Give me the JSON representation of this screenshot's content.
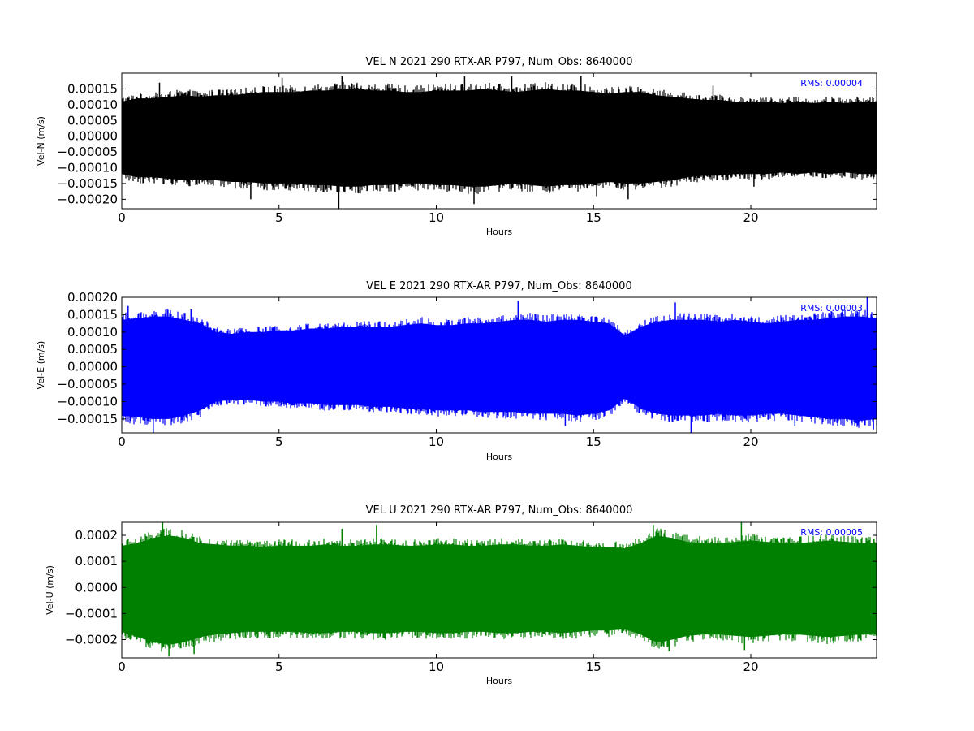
{
  "chart_data": [
    {
      "type": "line",
      "title": "VEL N 2021 290 RTX-AR  P797, Num_Obs: 8640000",
      "xlabel": "Hours",
      "ylabel": "Vel-N (m/s)",
      "xlim": [
        0,
        24
      ],
      "ylim": [
        -0.00023,
        0.0002
      ],
      "xticks": [
        0,
        5,
        10,
        15,
        20
      ],
      "xtick_labels": [
        "0",
        "5",
        "10",
        "15",
        "20"
      ],
      "yticks": [
        -0.0002,
        -0.00015,
        -0.0001,
        -5e-05,
        0,
        5e-05,
        0.0001,
        0.00015
      ],
      "ytick_labels": [
        "−0.00020",
        "−0.00015",
        "−0.00010",
        "−0.00005",
        "0.00000",
        "0.00005",
        "0.00010",
        "0.00015"
      ],
      "color": "#000000",
      "rms_label": "RMS:  0.00004",
      "rms_color": "#0000ff",
      "grid": false,
      "series": [
        {
          "x": [
            0,
            0.5,
            1,
            1.5,
            2,
            2.5,
            3,
            3.5,
            4,
            4.5,
            5,
            5.5,
            6,
            6.5,
            7,
            7.5,
            8,
            8.5,
            9,
            9.5,
            10,
            10.5,
            11,
            11.5,
            12,
            12.5,
            13,
            13.5,
            14,
            14.5,
            15,
            15.5,
            16,
            16.5,
            17,
            17.5,
            18,
            18.5,
            19,
            19.5,
            20,
            20.5,
            21,
            21.5,
            22,
            22.5,
            23,
            23.5,
            24
          ],
          "upper": [
            0.00011,
            0.00012,
            0.00012,
            0.000125,
            0.00013,
            0.000125,
            0.00013,
            0.00013,
            0.000135,
            0.00014,
            0.00014,
            0.00014,
            0.000145,
            0.000145,
            0.00015,
            0.00015,
            0.000145,
            0.000145,
            0.00014,
            0.00014,
            0.000145,
            0.000145,
            0.000145,
            0.00015,
            0.000145,
            0.00014,
            0.000145,
            0.00015,
            0.000145,
            0.000145,
            0.00014,
            0.000135,
            0.00014,
            0.00014,
            0.00013,
            0.000125,
            0.00012,
            0.000115,
            0.000115,
            0.00011,
            0.00011,
            0.00011,
            0.000105,
            0.00011,
            0.000105,
            0.00011,
            0.000105,
            0.00011,
            0.00011
          ],
          "lower": [
            -0.00012,
            -0.00013,
            -0.00013,
            -0.000135,
            -0.00014,
            -0.00014,
            -0.00014,
            -0.000145,
            -0.000145,
            -0.00015,
            -0.00015,
            -0.00015,
            -0.000155,
            -0.000155,
            -0.00016,
            -0.00016,
            -0.000155,
            -0.000155,
            -0.00015,
            -0.00015,
            -0.000155,
            -0.000155,
            -0.00016,
            -0.00016,
            -0.000155,
            -0.00015,
            -0.000155,
            -0.00016,
            -0.000155,
            -0.000155,
            -0.00015,
            -0.000145,
            -0.00015,
            -0.00015,
            -0.000145,
            -0.00014,
            -0.00013,
            -0.000125,
            -0.000125,
            -0.00012,
            -0.00012,
            -0.00012,
            -0.000115,
            -0.00012,
            -0.000115,
            -0.00012,
            -0.000115,
            -0.00012,
            -0.00012
          ],
          "spikes": [
            [
              1.2,
              0.00017
            ],
            [
              4.1,
              -0.0002
            ],
            [
              5.1,
              0.000185
            ],
            [
              6.9,
              -0.00023
            ],
            [
              7.0,
              0.00019
            ],
            [
              10.9,
              0.00019
            ],
            [
              11.2,
              -0.000215
            ],
            [
              12.4,
              0.00019
            ],
            [
              14.6,
              0.00019
            ],
            [
              15.1,
              -0.00019
            ],
            [
              16.1,
              -0.0002
            ],
            [
              18.8,
              0.00016
            ],
            [
              20.1,
              -0.00016
            ]
          ]
        }
      ]
    },
    {
      "type": "line",
      "title": "VEL E 2021 290 RTX-AR  P797, Num_Obs: 8640000",
      "xlabel": "Hours",
      "ylabel": "Vel-E (m/s)",
      "xlim": [
        0,
        24
      ],
      "ylim": [
        -0.00019,
        0.0002
      ],
      "xticks": [
        0,
        5,
        10,
        15,
        20
      ],
      "xtick_labels": [
        "0",
        "5",
        "10",
        "15",
        "20"
      ],
      "yticks": [
        -0.00015,
        -0.0001,
        -5e-05,
        0,
        5e-05,
        0.0001,
        0.00015,
        0.0002
      ],
      "ytick_labels": [
        "−0.00015",
        "−0.00010",
        "−0.00005",
        "0.00000",
        "0.00005",
        "0.00010",
        "0.00015",
        "0.00020"
      ],
      "color": "#0000ff",
      "rms_label": "RMS:  0.00003",
      "rms_color": "#0000ff",
      "grid": false,
      "series": [
        {
          "x": [
            0,
            0.5,
            1,
            1.5,
            2,
            2.5,
            3,
            3.5,
            4,
            4.5,
            5,
            5.5,
            6,
            6.5,
            7,
            7.5,
            8,
            8.5,
            9,
            9.5,
            10,
            10.5,
            11,
            11.5,
            12,
            12.5,
            13,
            13.5,
            14,
            14.5,
            15,
            15.5,
            16,
            16.5,
            17,
            17.5,
            18,
            18.5,
            19,
            19.5,
            20,
            20.5,
            21,
            21.5,
            22,
            22.5,
            23,
            23.5,
            24
          ],
          "upper": [
            0.000135,
            0.00014,
            0.000145,
            0.000145,
            0.000135,
            0.000125,
            0.0001,
            9.5e-05,
            0.0001,
            0.0001,
            0.000105,
            0.000105,
            0.00011,
            0.00011,
            0.000115,
            0.000115,
            0.000115,
            0.000115,
            0.00012,
            0.000125,
            0.00012,
            0.00012,
            0.000125,
            0.000125,
            0.00013,
            0.000135,
            0.000135,
            0.00013,
            0.000135,
            0.000135,
            0.00013,
            0.000125,
            9e-05,
            0.000115,
            0.00013,
            0.000135,
            0.000135,
            0.000135,
            0.00013,
            0.000135,
            0.00013,
            0.000125,
            0.00013,
            0.000135,
            0.000135,
            0.00014,
            0.000145,
            0.000145,
            0.00014
          ],
          "lower": [
            -0.00014,
            -0.000145,
            -0.00015,
            -0.00015,
            -0.00014,
            -0.000125,
            -0.0001,
            -9.5e-05,
            -9.5e-05,
            -0.0001,
            -0.0001,
            -0.000105,
            -0.000105,
            -0.00011,
            -0.00011,
            -0.00011,
            -0.000115,
            -0.000115,
            -0.00012,
            -0.00012,
            -0.000125,
            -0.000125,
            -0.000125,
            -0.00013,
            -0.00013,
            -0.00013,
            -0.000135,
            -0.000135,
            -0.000135,
            -0.00014,
            -0.000135,
            -0.000125,
            -9e-05,
            -0.00012,
            -0.000135,
            -0.00014,
            -0.00014,
            -0.00014,
            -0.000135,
            -0.00014,
            -0.00014,
            -0.000135,
            -0.000135,
            -0.00014,
            -0.000145,
            -0.00015,
            -0.00015,
            -0.000155,
            -0.00015
          ],
          "spikes": [
            [
              0.2,
              0.000175
            ],
            [
              1.0,
              -0.00019
            ],
            [
              2.2,
              0.000165
            ],
            [
              12.6,
              0.00019
            ],
            [
              14.1,
              -0.00017
            ],
            [
              17.6,
              0.000185
            ],
            [
              18.1,
              -0.00019
            ],
            [
              21.4,
              -0.00017
            ],
            [
              23.7,
              0.0002
            ],
            [
              23.9,
              -0.00018
            ]
          ]
        }
      ]
    },
    {
      "type": "line",
      "title": "VEL U 2021 290 RTX-AR  P797, Num_Obs: 8640000",
      "xlabel": "Hours",
      "ylabel": "Vel-U (m/s)",
      "xlim": [
        0,
        24
      ],
      "ylim": [
        -0.00027,
        0.00025
      ],
      "xticks": [
        0,
        5,
        10,
        15,
        20
      ],
      "xtick_labels": [
        "0",
        "5",
        "10",
        "15",
        "20"
      ],
      "yticks": [
        -0.0002,
        -0.0001,
        0,
        0.0001,
        0.0002
      ],
      "ytick_labels": [
        "−0.0002",
        "−0.0001",
        "0.0000",
        "0.0001",
        "0.0002"
      ],
      "color": "#008000",
      "rms_label": "RMS:  0.00005",
      "rms_color": "#0000ff",
      "grid": false,
      "series": [
        {
          "x": [
            0,
            0.5,
            1,
            1.5,
            2,
            2.5,
            3,
            3.5,
            4,
            4.5,
            5,
            5.5,
            6,
            6.5,
            7,
            7.5,
            8,
            8.5,
            9,
            9.5,
            10,
            10.5,
            11,
            11.5,
            12,
            12.5,
            13,
            13.5,
            14,
            14.5,
            15,
            15.5,
            16,
            16.5,
            17,
            17.5,
            18,
            18.5,
            19,
            19.5,
            20,
            20.5,
            21,
            21.5,
            22,
            22.5,
            23,
            23.5,
            24
          ],
          "upper": [
            0.00016,
            0.00017,
            0.00019,
            0.0002,
            0.00019,
            0.00017,
            0.000165,
            0.00016,
            0.00016,
            0.000155,
            0.00016,
            0.00016,
            0.00016,
            0.000165,
            0.00016,
            0.00016,
            0.000165,
            0.000165,
            0.00016,
            0.00016,
            0.000165,
            0.000165,
            0.00016,
            0.00016,
            0.000165,
            0.000165,
            0.00016,
            0.00016,
            0.000165,
            0.00016,
            0.000155,
            0.000155,
            0.00015,
            0.00017,
            0.0002,
            0.00019,
            0.000175,
            0.00017,
            0.00017,
            0.000175,
            0.00018,
            0.000175,
            0.00017,
            0.00017,
            0.000175,
            0.00018,
            0.000175,
            0.00017,
            0.00017
          ],
          "lower": [
            -0.00017,
            -0.00019,
            -0.00021,
            -0.00022,
            -0.00021,
            -0.00019,
            -0.00018,
            -0.000175,
            -0.00017,
            -0.00017,
            -0.00017,
            -0.00017,
            -0.000175,
            -0.000175,
            -0.00017,
            -0.00017,
            -0.000175,
            -0.000175,
            -0.00017,
            -0.00017,
            -0.000175,
            -0.000175,
            -0.00017,
            -0.00017,
            -0.000175,
            -0.000175,
            -0.00017,
            -0.00017,
            -0.000175,
            -0.00017,
            -0.000165,
            -0.000165,
            -0.00016,
            -0.00018,
            -0.00021,
            -0.0002,
            -0.000185,
            -0.00018,
            -0.00018,
            -0.000185,
            -0.00019,
            -0.000185,
            -0.00018,
            -0.00018,
            -0.000185,
            -0.00019,
            -0.000185,
            -0.00018,
            -0.00018
          ],
          "spikes": [
            [
              1.3,
              0.00025
            ],
            [
              1.5,
              -0.000265
            ],
            [
              2.3,
              -0.000255
            ],
            [
              7.0,
              0.000225
            ],
            [
              8.1,
              0.00024
            ],
            [
              16.9,
              0.00024
            ],
            [
              17.4,
              -0.000245
            ],
            [
              19.7,
              0.00025
            ],
            [
              19.8,
              -0.00024
            ]
          ]
        }
      ]
    }
  ]
}
